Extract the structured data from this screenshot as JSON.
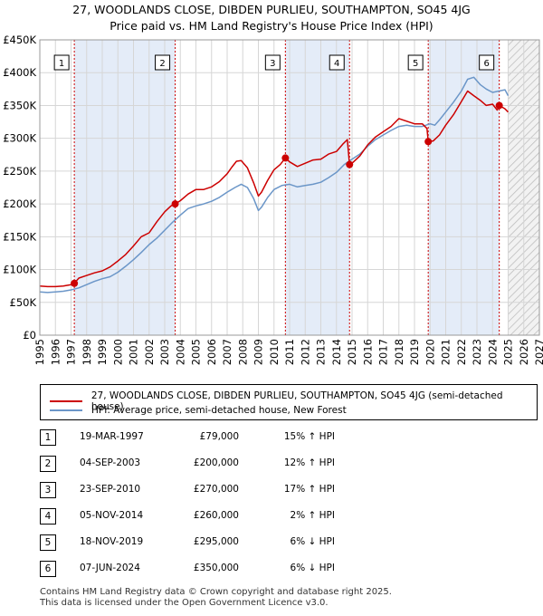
{
  "title_line1": "27, WOODLANDS CLOSE, DIBDEN PURLIEU, SOUTHAMPTON, SO45 4JG",
  "title_line2": "Price paid vs. HM Land Registry's House Price Index (HPI)",
  "colors": {
    "property": "#cc0000",
    "hpi": "#6b96c8",
    "band": "#e4ecf8",
    "marker_line": "#cc0000",
    "future_hatch": "#bbbbbb"
  },
  "legend": {
    "property_label": "27, WOODLANDS CLOSE, DIBDEN PURLIEU, SOUTHAMPTON, SO45 4JG (semi-detached house)",
    "hpi_label": "HPI: Average price, semi-detached house, New Forest"
  },
  "sales": [
    {
      "num": "1",
      "date": "19-MAR-1997",
      "price": "£79,000",
      "hpi": "15% ↑ HPI"
    },
    {
      "num": "2",
      "date": "04-SEP-2003",
      "price": "£200,000",
      "hpi": "12% ↑ HPI"
    },
    {
      "num": "3",
      "date": "23-SEP-2010",
      "price": "£270,000",
      "hpi": "17% ↑ HPI"
    },
    {
      "num": "4",
      "date": "05-NOV-2014",
      "price": "£260,000",
      "hpi": "2% ↑ HPI"
    },
    {
      "num": "5",
      "date": "18-NOV-2019",
      "price": "£295,000",
      "hpi": "6% ↓ HPI"
    },
    {
      "num": "6",
      "date": "07-JUN-2024",
      "price": "£350,000",
      "hpi": "6% ↓ HPI"
    }
  ],
  "footer_line1": "Contains HM Land Registry data © Crown copyright and database right 2025.",
  "footer_line2": "This data is licensed under the Open Government Licence v3.0.",
  "chart_data": {
    "type": "line",
    "xlim": [
      1995,
      2027
    ],
    "ylim": [
      0,
      450000
    ],
    "x_ticks": [
      "1995",
      "1996",
      "1997",
      "1998",
      "1999",
      "2000",
      "2001",
      "2002",
      "2003",
      "2004",
      "2005",
      "2006",
      "2007",
      "2008",
      "2009",
      "2010",
      "2011",
      "2012",
      "2013",
      "2014",
      "2015",
      "2016",
      "2017",
      "2018",
      "2019",
      "2020",
      "2021",
      "2022",
      "2023",
      "2024",
      "2025",
      "2026",
      "2027"
    ],
    "y_ticks": [
      {
        "value": 0,
        "label": "£0"
      },
      {
        "value": 50000,
        "label": "£50K"
      },
      {
        "value": 100000,
        "label": "£100K"
      },
      {
        "value": 150000,
        "label": "£150K"
      },
      {
        "value": 200000,
        "label": "£200K"
      },
      {
        "value": 250000,
        "label": "£250K"
      },
      {
        "value": 300000,
        "label": "£300K"
      },
      {
        "value": 350000,
        "label": "£350K"
      },
      {
        "value": 400000,
        "label": "£400K"
      },
      {
        "value": 450000,
        "label": "£450K"
      }
    ],
    "grid": true,
    "forecast_start": 2025.0,
    "shaded_periods": [
      [
        1997.21,
        2003.67
      ],
      [
        2010.73,
        2014.84
      ],
      [
        2019.88,
        2024.43
      ]
    ],
    "sale_markers": [
      {
        "label": "1",
        "x": 1997.21,
        "y": 79000
      },
      {
        "label": "2",
        "x": 2003.67,
        "y": 200000
      },
      {
        "label": "3",
        "x": 2010.73,
        "y": 270000
      },
      {
        "label": "4",
        "x": 2014.84,
        "y": 260000
      },
      {
        "label": "5",
        "x": 2019.88,
        "y": 295000
      },
      {
        "label": "6",
        "x": 2024.43,
        "y": 350000
      }
    ],
    "series": [
      {
        "name": "27, WOODLANDS CLOSE, DIBDEN PURLIEU, SOUTHAMPTON, SO45 4JG (semi-detached house)",
        "x": [
          1995.0,
          1995.5,
          1996.0,
          1996.5,
          1997.0,
          1997.21,
          1997.5,
          1998.0,
          1998.5,
          1999.0,
          1999.5,
          2000.0,
          2000.5,
          2001.0,
          2001.5,
          2002.0,
          2002.5,
          2003.0,
          2003.4,
          2003.67,
          2004.0,
          2004.5,
          2005.0,
          2005.5,
          2006.0,
          2006.5,
          2007.0,
          2007.3,
          2007.6,
          2007.9,
          2008.3,
          2008.7,
          2009.0,
          2009.2,
          2009.6,
          2010.0,
          2010.4,
          2010.73,
          2011.0,
          2011.5,
          2012.0,
          2012.5,
          2013.0,
          2013.5,
          2014.0,
          2014.4,
          2014.7,
          2014.84,
          2015.0,
          2015.5,
          2016.0,
          2016.5,
          2017.0,
          2017.5,
          2018.0,
          2018.5,
          2019.0,
          2019.5,
          2019.8,
          2019.88,
          2020.2,
          2020.6,
          2021.0,
          2021.5,
          2022.0,
          2022.4,
          2022.8,
          2023.2,
          2023.6,
          2024.0,
          2024.3,
          2024.43,
          2024.8,
          2025.0
        ],
        "y": [
          75000,
          74000,
          74000,
          75000,
          77000,
          79000,
          87000,
          91000,
          95000,
          98000,
          104000,
          113000,
          123000,
          136000,
          150000,
          156000,
          173000,
          188000,
          197000,
          200000,
          205000,
          215000,
          222000,
          222000,
          226000,
          234000,
          246000,
          256000,
          265000,
          266000,
          255000,
          232000,
          212000,
          218000,
          236000,
          252000,
          260000,
          270000,
          264000,
          257000,
          262000,
          267000,
          268000,
          276000,
          280000,
          291000,
          298000,
          260000,
          262000,
          273000,
          290000,
          302000,
          310000,
          318000,
          330000,
          326000,
          322000,
          322000,
          315000,
          295000,
          296000,
          305000,
          320000,
          336000,
          356000,
          372000,
          365000,
          358000,
          350000,
          352000,
          343000,
          350000,
          345000,
          340000
        ]
      },
      {
        "name": "HPI: Average price, semi-detached house, New Forest",
        "x": [
          1995.0,
          1995.5,
          1996.0,
          1996.5,
          1997.0,
          1997.5,
          1998.0,
          1998.5,
          1999.0,
          1999.5,
          2000.0,
          2000.5,
          2001.0,
          2001.5,
          2002.0,
          2002.5,
          2003.0,
          2003.5,
          2004.0,
          2004.5,
          2005.0,
          2005.5,
          2006.0,
          2006.5,
          2007.0,
          2007.5,
          2007.9,
          2008.3,
          2008.7,
          2009.0,
          2009.2,
          2009.6,
          2010.0,
          2010.5,
          2011.0,
          2011.5,
          2012.0,
          2012.5,
          2013.0,
          2013.5,
          2014.0,
          2014.5,
          2015.0,
          2015.5,
          2016.0,
          2016.5,
          2017.0,
          2017.5,
          2018.0,
          2018.5,
          2019.0,
          2019.5,
          2020.0,
          2020.3,
          2020.6,
          2021.0,
          2021.5,
          2022.0,
          2022.4,
          2022.8,
          2023.2,
          2023.6,
          2024.0,
          2024.4,
          2024.8,
          2025.0
        ],
        "y": [
          66000,
          65000,
          66000,
          67000,
          69000,
          72000,
          77000,
          82000,
          86000,
          89000,
          96000,
          105000,
          115000,
          126000,
          138000,
          148000,
          160000,
          172000,
          183000,
          193000,
          197000,
          200000,
          204000,
          210000,
          218000,
          225000,
          230000,
          225000,
          208000,
          190000,
          195000,
          210000,
          222000,
          228000,
          230000,
          226000,
          228000,
          230000,
          233000,
          240000,
          248000,
          260000,
          268000,
          276000,
          288000,
          298000,
          305000,
          312000,
          318000,
          320000,
          318000,
          318000,
          322000,
          320000,
          328000,
          340000,
          355000,
          372000,
          390000,
          393000,
          382000,
          375000,
          370000,
          372000,
          374000,
          365000
        ]
      }
    ]
  }
}
